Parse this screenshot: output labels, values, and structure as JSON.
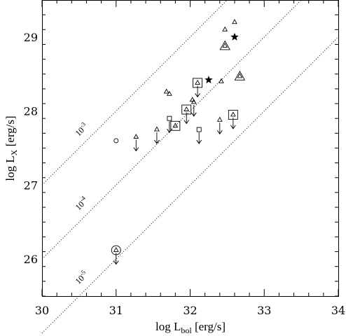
{
  "chart_data": {
    "type": "scatter",
    "xlabel": {
      "main": "log L",
      "sub": "bol",
      "tail": " [erg/s]"
    },
    "ylabel": {
      "main": "log L",
      "sub": "X",
      "tail": " [erg/s]"
    },
    "xlim": [
      30,
      34
    ],
    "ylim": [
      25.5,
      29.5
    ],
    "xticks": [
      "30",
      "31",
      "32",
      "33",
      "34"
    ],
    "yticks": [
      "26",
      "27",
      "28",
      "29"
    ],
    "grid": false,
    "ratio_lines": [
      {
        "label_base": "10",
        "label_exp": "-3",
        "log_ratio": -3,
        "label_at": [
          30.56,
          27.72
        ]
      },
      {
        "label_base": "10",
        "label_exp": "-4",
        "log_ratio": -4,
        "label_at": [
          30.56,
          26.72
        ]
      },
      {
        "label_base": "10",
        "label_exp": "-5",
        "log_ratio": -5,
        "label_at": [
          30.56,
          25.72
        ]
      }
    ],
    "points": [
      {
        "marker": "circle",
        "x": 31.0,
        "y": 27.6
      },
      {
        "marker": "triangle",
        "x": 32.6,
        "y": 29.2
      },
      {
        "marker": "triangle",
        "x": 32.47,
        "y": 29.1
      },
      {
        "marker": "triangle",
        "x": 32.42,
        "y": 28.4
      },
      {
        "marker": "triangle",
        "x": 31.68,
        "y": 28.26
      },
      {
        "marker": "triangle",
        "x": 31.72,
        "y": 28.23
      },
      {
        "marker": "triangle",
        "x": 32.03,
        "y": 28.15
      },
      {
        "marker": "star",
        "x": 32.6,
        "y": 29.0
      },
      {
        "marker": "star",
        "x": 32.25,
        "y": 28.42
      },
      {
        "marker": "triangle",
        "boxed": "triangle",
        "x": 32.47,
        "y": 28.88
      },
      {
        "marker": "triangle",
        "boxed": "triangle",
        "x": 32.67,
        "y": 28.47
      },
      {
        "marker": "triangle",
        "boxed": "square",
        "x": 32.1,
        "y": 28.38,
        "upper_limit": true
      },
      {
        "marker": "triangle",
        "boxed": "square",
        "x": 31.95,
        "y": 28.02,
        "upper_limit": true
      },
      {
        "marker": "triangle",
        "boxed": "square",
        "x": 31.8,
        "y": 27.8
      },
      {
        "marker": "triangle",
        "boxed": "square",
        "x": 32.58,
        "y": 27.95,
        "upper_limit": true
      },
      {
        "marker": "triangle",
        "boxed": "circle",
        "x": 31.0,
        "y": 26.12,
        "upper_limit": true
      },
      {
        "marker": "square",
        "x": 31.72,
        "y": 27.9,
        "upper_limit": true
      },
      {
        "marker": "square",
        "x": 32.12,
        "y": 27.75,
        "upper_limit": true
      },
      {
        "marker": "triangle",
        "x": 32.05,
        "y": 28.12,
        "upper_limit": true
      },
      {
        "marker": "triangle",
        "x": 31.27,
        "y": 27.65,
        "upper_limit": true
      },
      {
        "marker": "triangle",
        "x": 31.55,
        "y": 27.75,
        "upper_limit": true
      },
      {
        "marker": "triangle",
        "x": 32.4,
        "y": 27.88,
        "upper_limit": true
      }
    ]
  }
}
